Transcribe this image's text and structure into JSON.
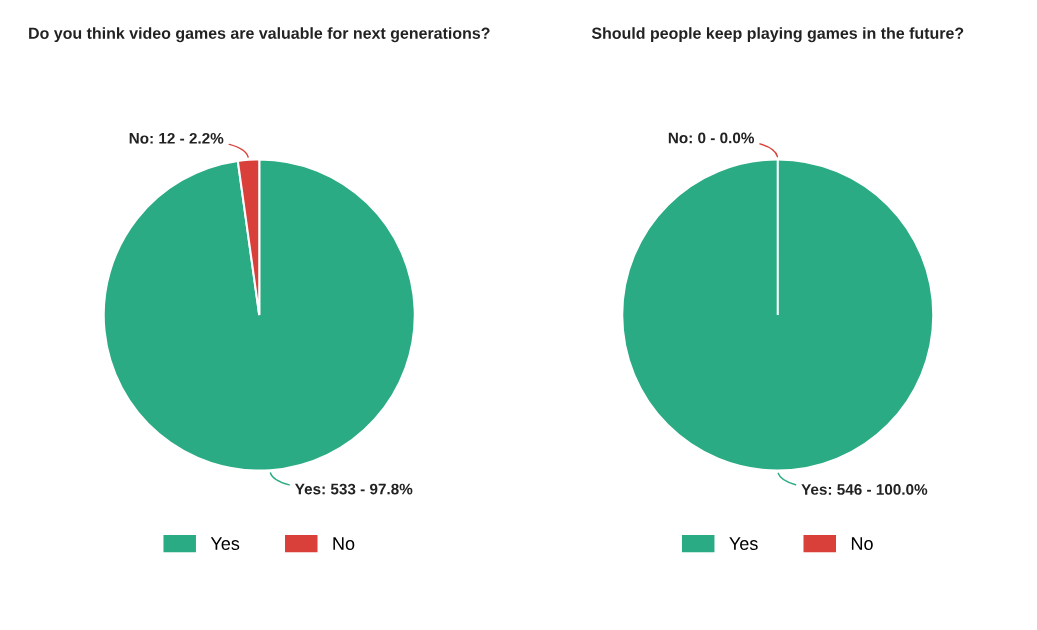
{
  "chart_data": [
    {
      "type": "pie",
      "title": "Do you think video games are valuable for next generations?",
      "categories": [
        "Yes",
        "No"
      ],
      "values": [
        533,
        12
      ],
      "colors": [
        "#2bab83",
        "#d9403a"
      ],
      "value_labels": [
        "Yes: 533 - 97.8%",
        "No: 12 - 2.2%"
      ],
      "legend": "bottom"
    },
    {
      "type": "pie",
      "title": "Should people keep playing games in the future?",
      "categories": [
        "Yes",
        "No"
      ],
      "values": [
        546,
        0
      ],
      "colors": [
        "#2bab83",
        "#d9403a"
      ],
      "value_labels": [
        "Yes: 546 - 100.0%",
        "No: 0 - 0.0%"
      ],
      "legend": "bottom"
    }
  ]
}
